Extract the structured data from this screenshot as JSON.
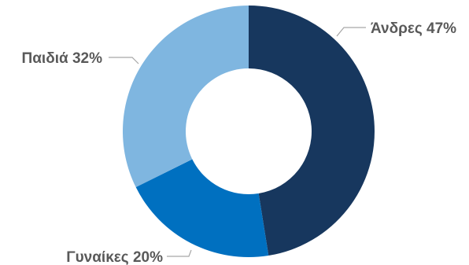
{
  "chart_data": {
    "type": "pie",
    "variant": "donut",
    "title": "",
    "legend": "none",
    "categories": [
      "Άνδρες",
      "Γυναίκες",
      "Παιδιά"
    ],
    "values": [
      47,
      20,
      32
    ],
    "labels": [
      "Άνδρες 47%",
      "Γυναίκες 20%",
      "Παιδιά 32%"
    ],
    "colors": [
      "#17375e",
      "#0070c0",
      "#7fb6e0"
    ],
    "label_color": "#595959",
    "leader_line_color": "#a6a6a6",
    "start_angle": "12 o'clock",
    "direction": "clockwise"
  }
}
